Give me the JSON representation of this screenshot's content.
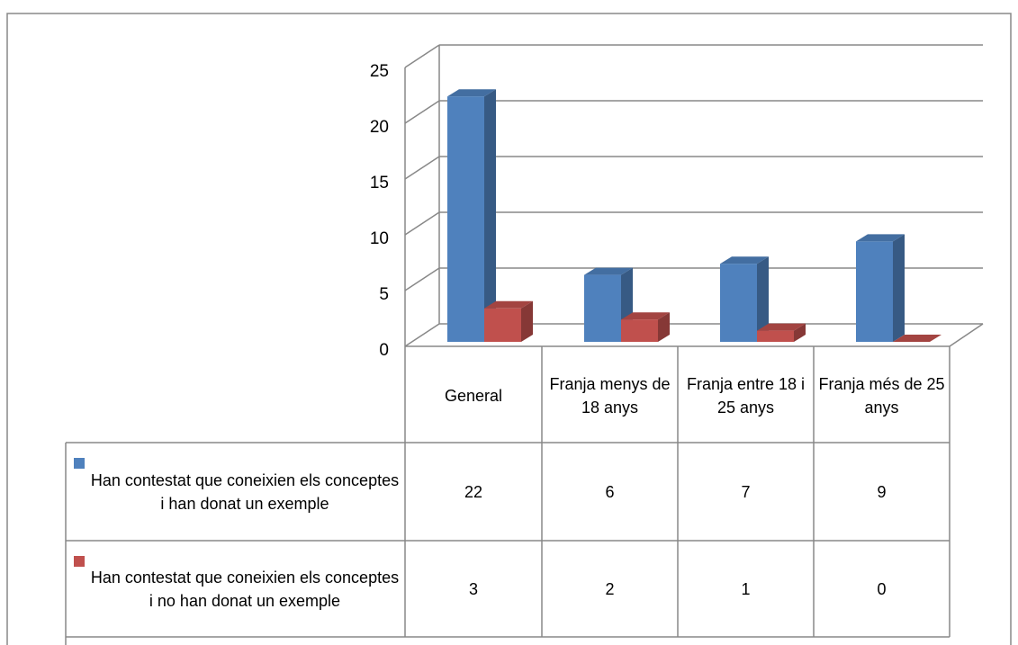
{
  "chart_data": {
    "type": "bar3d",
    "categories": [
      "General",
      "Franja menys de 18 anys",
      "Franja entre 18 i 25 anys",
      "Franja més de 25 anys"
    ],
    "series": [
      {
        "name": "Han contestat que coneixien els conceptes i han donat un exemple",
        "color": "#4f81bd",
        "values": [
          22,
          6,
          7,
          9
        ]
      },
      {
        "name": "Han contestat que coneixien els conceptes i no han donat un exemple",
        "color": "#c0504d",
        "values": [
          3,
          2,
          1,
          0
        ]
      }
    ],
    "ylim": [
      0,
      25
    ],
    "yticks": [
      0,
      5,
      10,
      15,
      20,
      25
    ],
    "grid": true,
    "legend": "table"
  }
}
